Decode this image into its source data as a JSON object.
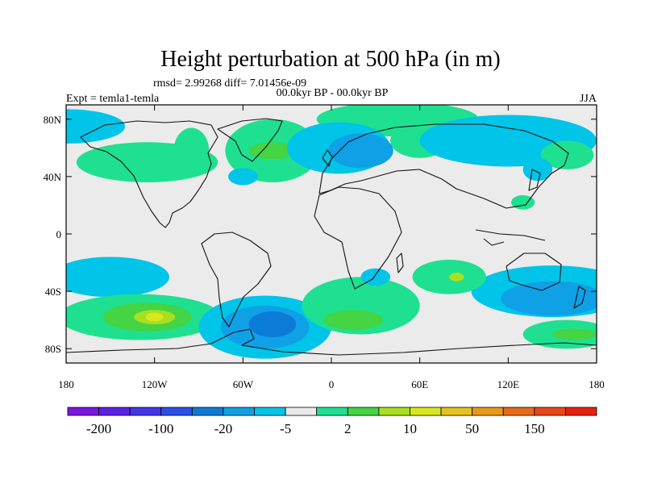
{
  "title": "Height perturbation at 500 hPa (in m)",
  "stats": "rmsd= 2.99268 diff= 7.01456e-09",
  "experiment_label": "Expt = temla1-temla",
  "period_label": "00.0kyr BP - 00.0kyr BP",
  "season_label": "JJA",
  "map": {
    "background_color": "#ebebeb",
    "lon_range": [
      -180,
      180
    ],
    "lat_range": [
      -90,
      90
    ],
    "lat_ticks": [
      {
        "value": 80,
        "label": "80N"
      },
      {
        "value": 40,
        "label": "40N"
      },
      {
        "value": 0,
        "label": "0"
      },
      {
        "value": -40,
        "label": "40S"
      },
      {
        "value": -80,
        "label": "80S"
      }
    ],
    "lon_ticks": [
      {
        "value": -180,
        "label": "180"
      },
      {
        "value": -120,
        "label": "120W"
      },
      {
        "value": -60,
        "label": "60W"
      },
      {
        "value": 0,
        "label": "0"
      },
      {
        "value": 60,
        "label": "60E"
      },
      {
        "value": 120,
        "label": "120E"
      },
      {
        "value": 180,
        "label": "180"
      }
    ],
    "anomalies": [
      {
        "color": "#1ee090",
        "lon": -125,
        "lat": 50,
        "rx": 48,
        "ry": 14
      },
      {
        "color": "#1ee090",
        "lon": -95,
        "lat": 58,
        "rx": 12,
        "ry": 16
      },
      {
        "color": "#1ee090",
        "lon": -40,
        "lat": 58,
        "rx": 32,
        "ry": 22
      },
      {
        "color": "#44d444",
        "lon": -40,
        "lat": 58,
        "rx": 16,
        "ry": 6
      },
      {
        "color": "#1ee090",
        "lon": 45,
        "lat": 80,
        "rx": 55,
        "ry": 12
      },
      {
        "color": "#1ee090",
        "lon": 60,
        "lat": 65,
        "rx": 20,
        "ry": 12
      },
      {
        "color": "#00c4e8",
        "lon": 5,
        "lat": 60,
        "rx": 35,
        "ry": 18
      },
      {
        "color": "#0fa0e6",
        "lon": 20,
        "lat": 58,
        "rx": 22,
        "ry": 12
      },
      {
        "color": "#00c4e8",
        "lon": 120,
        "lat": 65,
        "rx": 60,
        "ry": 18
      },
      {
        "color": "#00c4e8",
        "lon": -180,
        "lat": 75,
        "rx": 40,
        "ry": 12
      },
      {
        "color": "#00c4e8",
        "lon": -60,
        "lat": 40,
        "rx": 10,
        "ry": 6
      },
      {
        "color": "#1ee090",
        "lon": 160,
        "lat": 55,
        "rx": 18,
        "ry": 10
      },
      {
        "color": "#00c4e8",
        "lon": 140,
        "lat": 45,
        "rx": 10,
        "ry": 8
      },
      {
        "color": "#1ee090",
        "lon": 130,
        "lat": 22,
        "rx": 8,
        "ry": 5
      },
      {
        "color": "#00c4e8",
        "lon": -150,
        "lat": -30,
        "rx": 40,
        "ry": 14
      },
      {
        "color": "#00c4e8",
        "lon": 150,
        "lat": -40,
        "rx": 55,
        "ry": 18
      },
      {
        "color": "#0fa0e6",
        "lon": 150,
        "lat": -45,
        "rx": 35,
        "ry": 12
      },
      {
        "color": "#1ee090",
        "lon": -130,
        "lat": -58,
        "rx": 55,
        "ry": 16
      },
      {
        "color": "#44d444",
        "lon": -125,
        "lat": -58,
        "rx": 30,
        "ry": 10
      },
      {
        "color": "#a8e020",
        "lon": -120,
        "lat": -58,
        "rx": 14,
        "ry": 5
      },
      {
        "color": "#d8e81e",
        "lon": -120,
        "lat": -58,
        "rx": 6,
        "ry": 3
      },
      {
        "color": "#00c4e8",
        "lon": -45,
        "lat": -65,
        "rx": 45,
        "ry": 22
      },
      {
        "color": "#0fa0e6",
        "lon": -45,
        "lat": -65,
        "rx": 30,
        "ry": 15
      },
      {
        "color": "#0a7cd8",
        "lon": -40,
        "lat": -63,
        "rx": 16,
        "ry": 9
      },
      {
        "color": "#1ee090",
        "lon": 20,
        "lat": -50,
        "rx": 40,
        "ry": 20
      },
      {
        "color": "#44d444",
        "lon": 15,
        "lat": -60,
        "rx": 20,
        "ry": 7
      },
      {
        "color": "#1ee090",
        "lon": 80,
        "lat": -30,
        "rx": 25,
        "ry": 12
      },
      {
        "color": "#a8e020",
        "lon": 85,
        "lat": -30,
        "rx": 5,
        "ry": 3
      },
      {
        "color": "#1ee090",
        "lon": 160,
        "lat": -70,
        "rx": 30,
        "ry": 10
      },
      {
        "color": "#44d444",
        "lon": 165,
        "lat": -70,
        "rx": 15,
        "ry": 4
      },
      {
        "color": "#00c4e8",
        "lon": 30,
        "lat": -30,
        "rx": 10,
        "ry": 6
      }
    ]
  },
  "colorbar": {
    "colors": [
      "#7a16e0",
      "#5a20e6",
      "#4236e8",
      "#2a50e8",
      "#0a7cd8",
      "#0fa0e6",
      "#00c4e8",
      "#ebebeb",
      "#1ee090",
      "#44d444",
      "#a8e020",
      "#d8e81e",
      "#e6c21e",
      "#e69a18",
      "#e86a18",
      "#e84618",
      "#e82010"
    ],
    "labels": [
      {
        "after_box": 1,
        "text": "-200"
      },
      {
        "after_box": 3,
        "text": "-100"
      },
      {
        "after_box": 5,
        "text": "-20"
      },
      {
        "after_box": 7,
        "text": "-5"
      },
      {
        "after_box": 9,
        "text": "2"
      },
      {
        "after_box": 11,
        "text": "10"
      },
      {
        "after_box": 13,
        "text": "50"
      },
      {
        "after_box": 15,
        "text": "150"
      }
    ]
  }
}
